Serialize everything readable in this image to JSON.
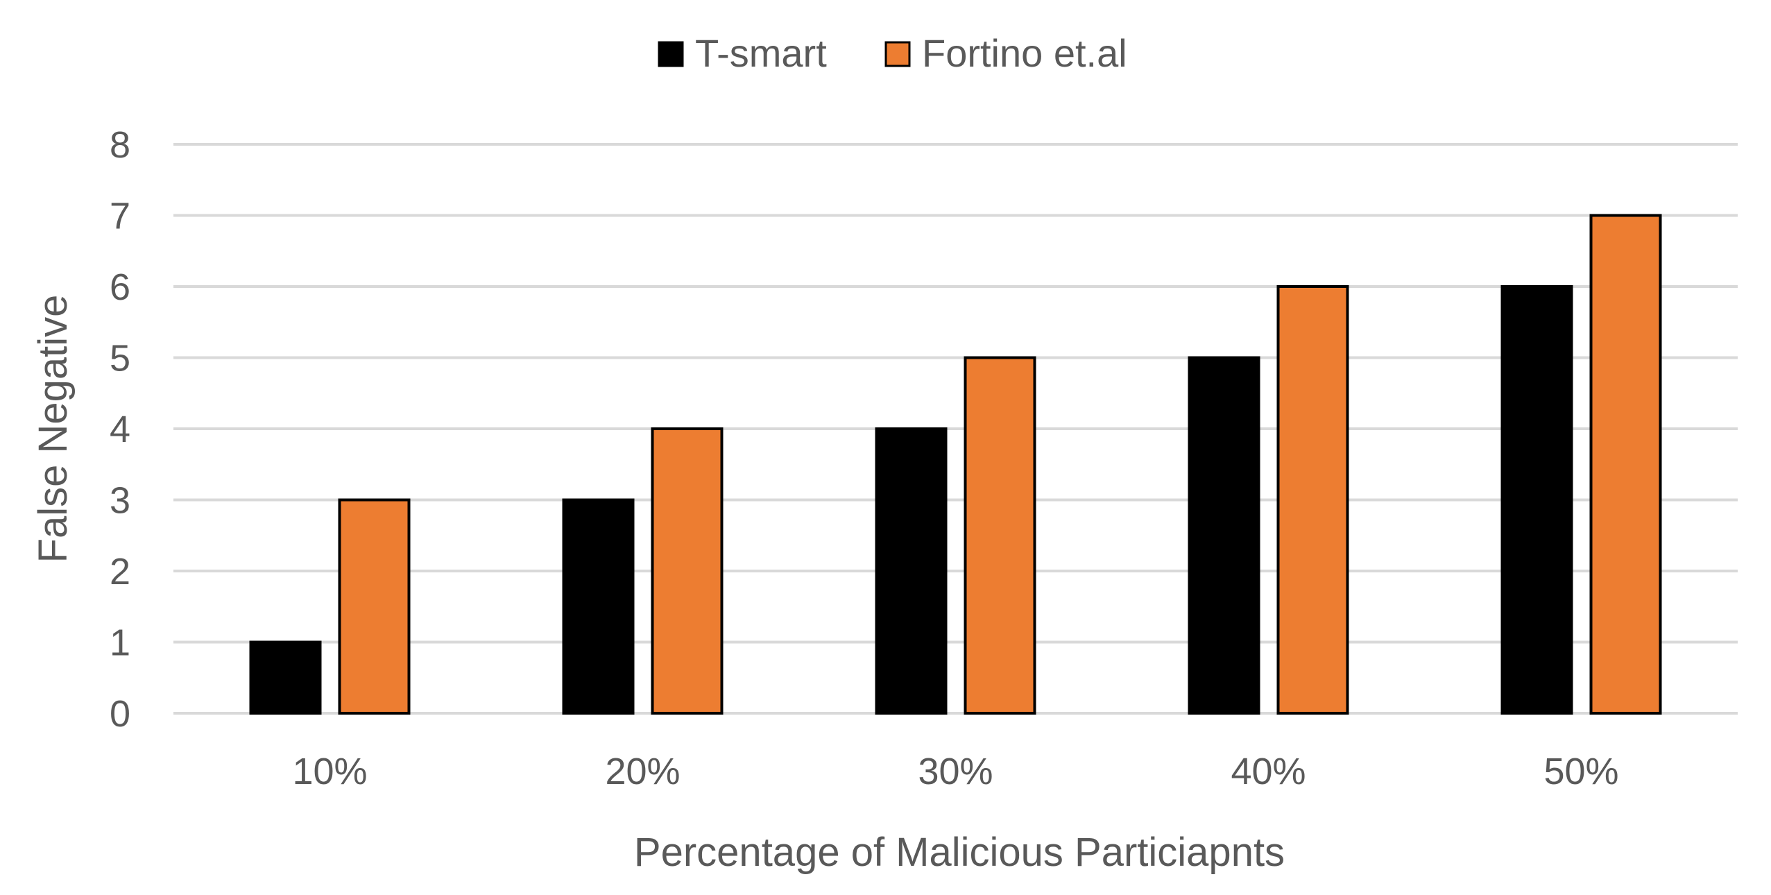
{
  "chart_data": {
    "type": "bar",
    "title": "",
    "xlabel": "Percentage of Malicious Particiapnts",
    "ylabel": "False Negative",
    "categories": [
      "10%",
      "20%",
      "30%",
      "40%",
      "50%"
    ],
    "series": [
      {
        "name": "T-smart",
        "values": [
          1,
          3,
          4,
          5,
          6
        ],
        "color": "#000000"
      },
      {
        "name": "Fortino et.al",
        "values": [
          3,
          4,
          5,
          6,
          7
        ],
        "color": "#ED7D31"
      }
    ],
    "ylim": [
      0,
      8
    ],
    "yticks": [
      "0",
      "1",
      "2",
      "3",
      "4",
      "5",
      "6",
      "7",
      "8"
    ],
    "grid": true,
    "legend_position": "top-center",
    "colors": {
      "grid": "#D9D9D9",
      "text": "#595959",
      "bar_outline": "#000000"
    }
  }
}
